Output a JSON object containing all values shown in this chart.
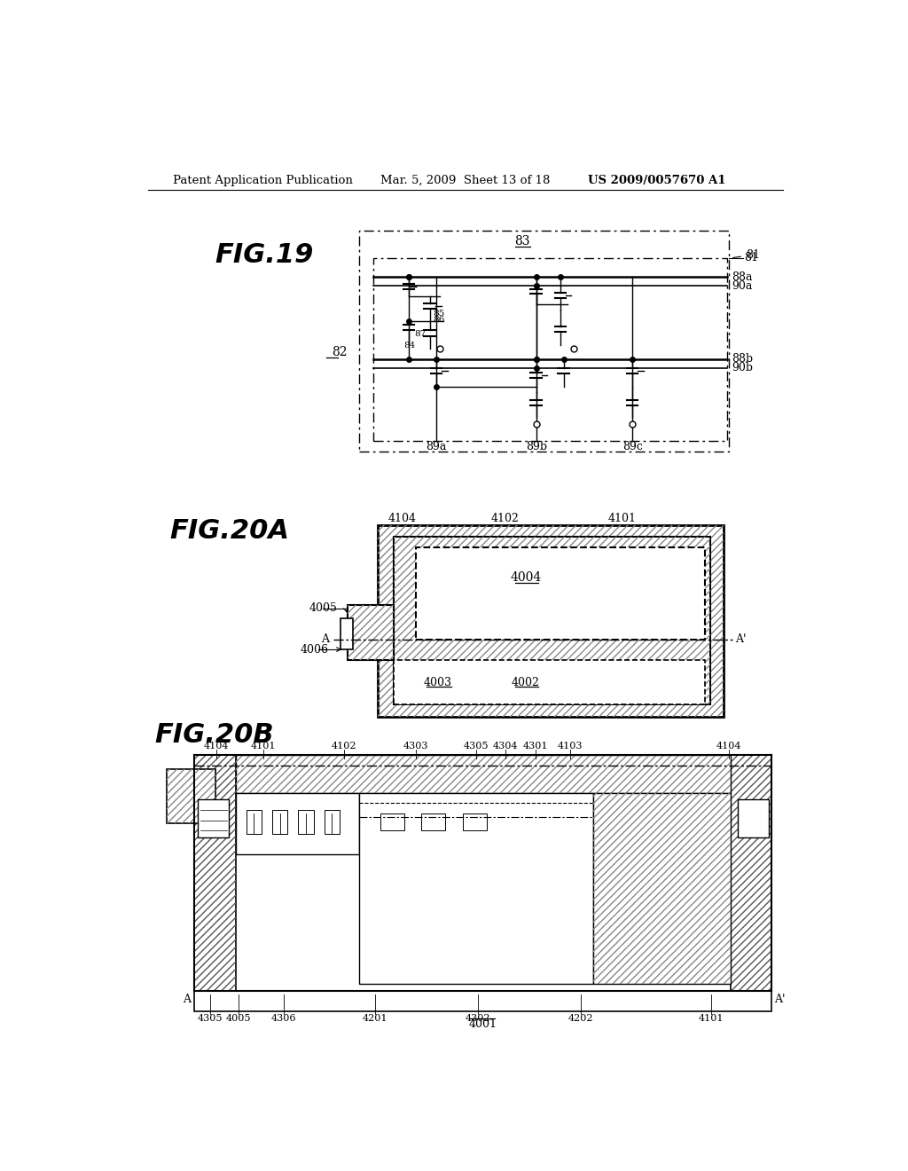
{
  "bg_color": "#ffffff",
  "header_left": "Patent Application Publication",
  "header_mid": "Mar. 5, 2009  Sheet 13 of 18",
  "header_right": "US 2009/0057670 A1"
}
